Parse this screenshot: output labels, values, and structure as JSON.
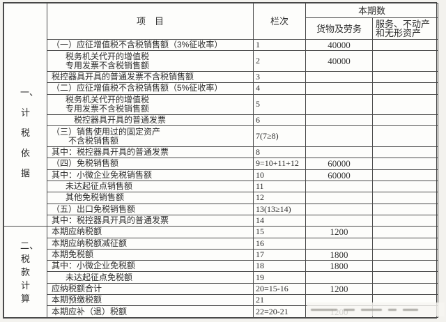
{
  "colors": {
    "border": "#4a4a4a",
    "text": "#2b2b2b",
    "paper": "#fdfdfb",
    "page_background": "#f3f2ee"
  },
  "header": {
    "item": "项　目",
    "lanci": "栏次",
    "current_period": "本期数",
    "goods": "货物及劳务",
    "services": "服务、不动产和无形资产"
  },
  "sections": [
    {
      "label": "一、计税依据"
    },
    {
      "label": "二、税款计算"
    }
  ],
  "rows": [
    {
      "item": "（一）应征增值税不含税销售额（3%征收率）",
      "lanci": "1",
      "goods": "40000",
      "services": ""
    },
    {
      "item": "税务机关代开的增值税\n专用发票不含税销售额",
      "lanci": "2",
      "goods": "40000",
      "services": ""
    },
    {
      "item": "税控器具开具的普通发票不含税销售额",
      "lanci": "3",
      "goods": "",
      "services": ""
    },
    {
      "item": "（二）应征增值税不含税销售额（5%征收率）",
      "lanci": "4",
      "goods": "",
      "services": ""
    },
    {
      "item": "税务机关代开的增值税\n专用发票不含税销售额",
      "lanci": "5",
      "goods": "",
      "services": ""
    },
    {
      "item": "税控器具开具的普通发票",
      "lanci": "6",
      "goods": "",
      "services": ""
    },
    {
      "item": "（三）销售使用过的固定资产\n　　不含税销售额",
      "lanci": "7(7≥8)",
      "goods": "",
      "services": ""
    },
    {
      "item": "其中：税控器具开具的普通发票",
      "lanci": "8",
      "goods": "",
      "services": ""
    },
    {
      "item": "（四）免税销售额",
      "lanci": "9=10+11+12",
      "goods": "60000",
      "services": ""
    },
    {
      "item": "其中：小微企业免税销售额",
      "lanci": "10",
      "goods": "60000",
      "services": ""
    },
    {
      "item": "未达起征点销售额",
      "lanci": "11",
      "goods": "",
      "services": ""
    },
    {
      "item": "其他免税销售额",
      "lanci": "12",
      "goods": "",
      "services": ""
    },
    {
      "item": "（五）出口免税销售额",
      "lanci": "13(13≥14)",
      "goods": "",
      "services": ""
    },
    {
      "item": "其中：税控器具开具的普通发票",
      "lanci": "14",
      "goods": "",
      "services": ""
    },
    {
      "item": "本期应纳税额",
      "lanci": "15",
      "goods": "1200",
      "services": ""
    },
    {
      "item": "本期应纳税额减征额",
      "lanci": "16",
      "goods": "",
      "services": ""
    },
    {
      "item": "本期免税额",
      "lanci": "17",
      "goods": "1800",
      "services": ""
    },
    {
      "item": "其中：小微企业免税额",
      "lanci": "18",
      "goods": "1800",
      "services": ""
    },
    {
      "item": "未达起征点免税额",
      "lanci": "19",
      "goods": "",
      "services": ""
    },
    {
      "item": "应纳税额合计",
      "lanci": "20=15-16",
      "goods": "1200",
      "services": ""
    },
    {
      "item": "本期预缴税额",
      "lanci": "21",
      "goods": "",
      "services": ""
    },
    {
      "item": "本期应补（退）税额",
      "lanci": "22=20-21",
      "goods": "1200",
      "services": ""
    }
  ]
}
